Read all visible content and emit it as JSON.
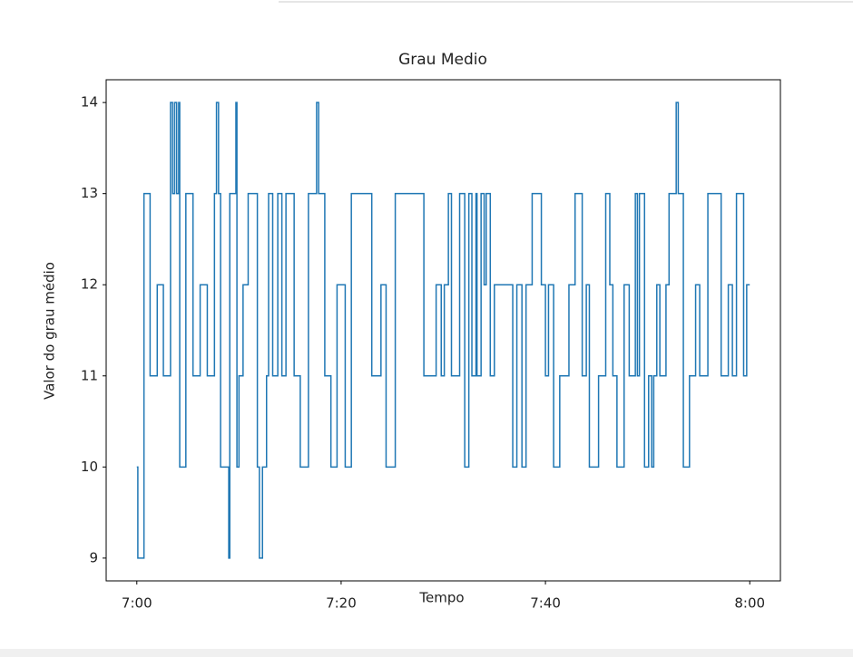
{
  "chart_data": {
    "type": "line",
    "step": "post",
    "title": "Grau Medio",
    "xlabel": "Tempo",
    "ylabel": "Valor do grau médio",
    "xlim": [
      -3,
      63
    ],
    "ylim": [
      8.75,
      14.25
    ],
    "xticks": [
      {
        "value": 0,
        "label": "7:00"
      },
      {
        "value": 20,
        "label": "7:20"
      },
      {
        "value": 40,
        "label": "7:40"
      },
      {
        "value": 60,
        "label": "8:00"
      }
    ],
    "yticks": [
      9,
      10,
      11,
      12,
      13,
      14
    ],
    "grid": false,
    "series": [
      {
        "name": "Grau Medio",
        "color": "#1f77b4",
        "x": [
          0,
          0.1,
          0.7,
          1.3,
          2.0,
          2.6,
          3.3,
          3.5,
          3.7,
          3.9,
          4.1,
          4.2,
          4.8,
          5.5,
          6.2,
          6.9,
          7.6,
          7.8,
          8.0,
          8.2,
          9.0,
          9.1,
          9.7,
          9.8,
          10.0,
          10.4,
          10.9,
          11.8,
          12.0,
          12.3,
          12.7,
          12.9,
          13.3,
          13.8,
          14.2,
          14.6,
          15.4,
          16.0,
          16.8,
          17.6,
          17.8,
          18.4,
          19.0,
          19.6,
          20.4,
          21.0,
          23.0,
          23.9,
          24.4,
          25.3,
          28.1,
          29.3,
          29.8,
          30.1,
          30.5,
          30.8,
          31.6,
          32.1,
          32.5,
          32.8,
          33.2,
          33.3,
          33.7,
          34.0,
          34.2,
          34.6,
          35.0,
          36.8,
          37.2,
          37.7,
          38.1,
          38.7,
          39.6,
          40.0,
          40.3,
          40.8,
          41.4,
          42.3,
          42.9,
          43.6,
          44.0,
          44.3,
          45.2,
          45.9,
          46.3,
          46.6,
          47.0,
          47.7,
          48.2,
          48.8,
          49.0,
          49.2,
          49.7,
          50.1,
          50.4,
          50.6,
          50.9,
          51.2,
          51.8,
          52.1,
          52.8,
          53.0,
          53.5,
          54.1,
          54.7,
          55.1,
          55.9,
          57.2,
          57.9,
          58.3,
          58.7,
          59.4,
          59.7,
          60.0
        ],
        "values": [
          10,
          9,
          13,
          11,
          12,
          11,
          14,
          13,
          14,
          13,
          14,
          10,
          13,
          11,
          12,
          11,
          13,
          14,
          13,
          10,
          9,
          13,
          14,
          10,
          11,
          12,
          13,
          10,
          9,
          10,
          11,
          13,
          11,
          13,
          11,
          13,
          11,
          10,
          13,
          14,
          13,
          11,
          10,
          12,
          10,
          13,
          11,
          12,
          10,
          13,
          11,
          12,
          11,
          12,
          13,
          11,
          13,
          10,
          13,
          11,
          13,
          11,
          13,
          12,
          13,
          11,
          12,
          10,
          12,
          10,
          12,
          13,
          12,
          11,
          12,
          10,
          11,
          12,
          13,
          11,
          12,
          10,
          11,
          13,
          12,
          11,
          10,
          12,
          11,
          13,
          11,
          13,
          10,
          11,
          10,
          11,
          12,
          11,
          12,
          13,
          14,
          13,
          10,
          11,
          12,
          11,
          13,
          11,
          12,
          11,
          13,
          11,
          12,
          12
        ]
      }
    ]
  }
}
